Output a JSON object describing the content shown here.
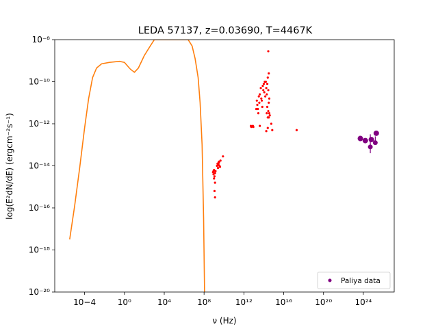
{
  "chart_data": {
    "type": "scatter",
    "title": "LEDA 57137, z=0.03690, T=4467K",
    "xlabel": "ν (Hz)",
    "ylabel": "log(E²dN/dE) (ergcm⁻²s⁻¹)",
    "xscale": "log",
    "yscale": "log",
    "xlim_log10": [
      -7,
      27.1
    ],
    "ylim_log10": [
      -20,
      -8
    ],
    "grid": false,
    "legend_placement": "lower-right",
    "x_ticks": [
      {
        "exp": -4,
        "label": "10−4"
      },
      {
        "exp": 0,
        "label": "10⁰"
      },
      {
        "exp": 4,
        "label": "10⁴"
      },
      {
        "exp": 8,
        "label": "10⁸"
      },
      {
        "exp": 12,
        "label": "10¹²"
      },
      {
        "exp": 16,
        "label": "10¹⁶"
      },
      {
        "exp": 20,
        "label": "10²⁰"
      },
      {
        "exp": 24,
        "label": "10²⁴"
      }
    ],
    "y_ticks": [
      {
        "exp": -20,
        "label": "10⁻²⁰"
      },
      {
        "exp": -18,
        "label": "10⁻¹⁸"
      },
      {
        "exp": -16,
        "label": "10⁻¹⁶"
      },
      {
        "exp": -14,
        "label": "10⁻¹⁴"
      },
      {
        "exp": -12,
        "label": "10⁻¹²"
      },
      {
        "exp": -10,
        "label": "10⁻¹⁰"
      },
      {
        "exp": -8,
        "label": "10⁻⁸"
      }
    ],
    "model_curve": {
      "color": "#ff7f0e",
      "points_log10": [
        [
          -5.5,
          -17.5
        ],
        [
          -5.0,
          -15.9
        ],
        [
          -4.5,
          -14.1
        ],
        [
          -4.0,
          -12.2
        ],
        [
          -3.6,
          -10.8
        ],
        [
          -3.2,
          -9.8
        ],
        [
          -2.8,
          -9.35
        ],
        [
          -2.3,
          -9.15
        ],
        [
          -1.5,
          -9.08
        ],
        [
          -0.5,
          -9.03
        ],
        [
          0.0,
          -9.08
        ],
        [
          0.6,
          -9.4
        ],
        [
          1.0,
          -9.55
        ],
        [
          1.4,
          -9.35
        ],
        [
          2.0,
          -8.75
        ],
        [
          2.6,
          -8.3
        ],
        [
          3.0,
          -8.0
        ],
        [
          6.4,
          -8.0
        ],
        [
          6.8,
          -8.3
        ],
        [
          7.1,
          -8.9
        ],
        [
          7.4,
          -9.8
        ],
        [
          7.6,
          -11.0
        ],
        [
          7.8,
          -13.0
        ],
        [
          7.95,
          -16.5
        ],
        [
          8.05,
          -20.0
        ]
      ]
    },
    "observed_points": {
      "color": "#ff0000",
      "points_log10": [
        [
          8.9,
          -14.3
        ],
        [
          8.95,
          -14.4
        ],
        [
          9.0,
          -14.2
        ],
        [
          9.05,
          -14.5
        ],
        [
          9.1,
          -14.35
        ],
        [
          9.0,
          -14.6
        ],
        [
          9.1,
          -14.8
        ],
        [
          9.05,
          -15.2
        ],
        [
          9.1,
          -15.5
        ],
        [
          8.95,
          -14.25
        ],
        [
          9.15,
          -14.25
        ],
        [
          9.3,
          -14.0
        ],
        [
          9.35,
          -13.9
        ],
        [
          9.4,
          -14.1
        ],
        [
          9.45,
          -13.95
        ],
        [
          9.5,
          -13.8
        ],
        [
          9.55,
          -14.0
        ],
        [
          9.6,
          -14.05
        ],
        [
          9.65,
          -13.75
        ],
        [
          9.5,
          -13.85
        ],
        [
          9.45,
          -13.85
        ],
        [
          9.9,
          -13.55
        ],
        [
          12.7,
          -12.1
        ],
        [
          12.75,
          -12.15
        ],
        [
          12.9,
          -12.1
        ],
        [
          12.95,
          -12.15
        ],
        [
          13.3,
          -10.9
        ],
        [
          13.35,
          -11.1
        ],
        [
          13.4,
          -11.3
        ],
        [
          13.45,
          -11.5
        ],
        [
          13.5,
          -10.7
        ],
        [
          13.55,
          -11.0
        ],
        [
          13.6,
          -10.6
        ],
        [
          13.7,
          -10.3
        ],
        [
          13.75,
          -10.8
        ],
        [
          13.8,
          -10.9
        ],
        [
          13.85,
          -11.2
        ],
        [
          13.9,
          -10.2
        ],
        [
          13.95,
          -10.4
        ],
        [
          14.0,
          -10.1
        ],
        [
          14.05,
          -10.5
        ],
        [
          14.1,
          -10.0
        ],
        [
          14.15,
          -10.7
        ],
        [
          14.2,
          -10.0
        ],
        [
          14.25,
          -10.3
        ],
        [
          14.3,
          -10.6
        ],
        [
          14.35,
          -10.1
        ],
        [
          14.4,
          -9.8
        ],
        [
          14.45,
          -10.4
        ],
        [
          14.5,
          -9.6
        ],
        [
          14.55,
          -11.5
        ],
        [
          14.3,
          -11.5
        ],
        [
          14.35,
          -11.2
        ],
        [
          14.4,
          -11.7
        ],
        [
          14.45,
          -11.4
        ],
        [
          14.5,
          -11.0
        ],
        [
          14.55,
          -10.8
        ],
        [
          14.6,
          -11.6
        ],
        [
          14.45,
          -8.55
        ],
        [
          14.5,
          -11.7
        ],
        [
          14.4,
          -12.2
        ],
        [
          14.75,
          -12.0
        ],
        [
          14.85,
          -12.3
        ],
        [
          13.25,
          -11.3
        ],
        [
          13.6,
          -12.1
        ],
        [
          14.25,
          -12.35
        ],
        [
          17.3,
          -12.3
        ]
      ]
    },
    "paliya_series": {
      "name": "Paliya data",
      "color": "#800080",
      "points_log10": [
        [
          23.7,
          -12.7
        ],
        [
          24.2,
          -12.8
        ],
        [
          24.8,
          -12.75
        ],
        [
          25.3,
          -12.45
        ]
      ],
      "error_points_log10": [
        [
          24.7,
          -13.1,
          -13.4,
          -12.5
        ],
        [
          25.2,
          -12.9,
          -13.0,
          -12.6
        ]
      ]
    }
  }
}
